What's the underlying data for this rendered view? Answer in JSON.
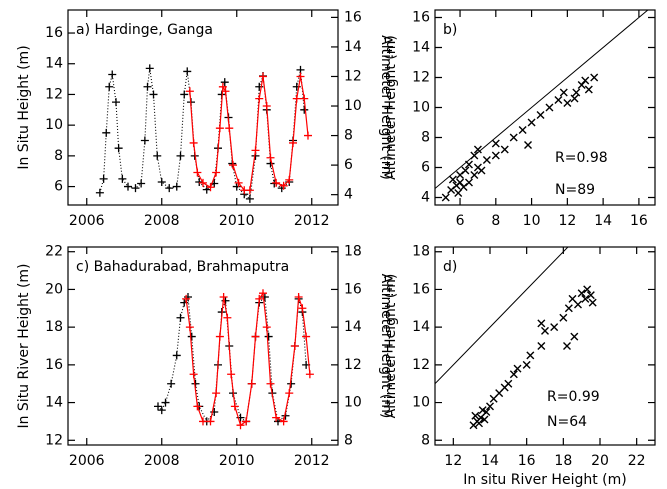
{
  "chart_data": [
    {
      "type": "line",
      "title": "a) Hardinge, Ganga",
      "ylabel": "In Situ Height (m)",
      "y2label": "Altimeter Height (m)",
      "xlim": [
        2005.5,
        2012.7
      ],
      "xticks": [
        2006,
        2008,
        2010,
        2012
      ],
      "ylim": [
        4.8,
        17.5
      ],
      "yticks": [
        6,
        8,
        10,
        12,
        14,
        16
      ],
      "y2lim": [
        3.3,
        16.5
      ],
      "y2ticks": [
        4,
        6,
        8,
        10,
        12,
        14,
        16
      ],
      "series": [
        {
          "color": "#000000",
          "marker": "+",
          "line": "dotted",
          "x": [
            2006.35,
            2006.45,
            2006.52,
            2006.6,
            2006.68,
            2006.78,
            2006.85,
            2006.95,
            2007.1,
            2007.3,
            2007.45,
            2007.55,
            2007.62,
            2007.68,
            2007.78,
            2007.88,
            2008.0,
            2008.2,
            2008.4,
            2008.5,
            2008.6,
            2008.68,
            2008.78,
            2008.88,
            2009.0,
            2009.2,
            2009.4,
            2009.5,
            2009.6,
            2009.68,
            2009.78,
            2009.88,
            2010.0,
            2010.2,
            2010.35,
            2010.5,
            2010.6,
            2010.7,
            2010.8,
            2010.9,
            2011.0,
            2011.2,
            2011.4,
            2011.5,
            2011.6,
            2011.7,
            2011.8
          ],
          "values": [
            5.6,
            6.5,
            9.5,
            12.5,
            13.3,
            11.5,
            8.5,
            6.5,
            6.0,
            5.9,
            6.2,
            9.0,
            12.5,
            13.7,
            12.0,
            8.0,
            6.3,
            5.9,
            6.0,
            8.0,
            12.0,
            13.5,
            11.5,
            8.0,
            6.3,
            5.8,
            6.2,
            8.5,
            12.0,
            12.8,
            10.5,
            7.5,
            6.0,
            5.5,
            5.2,
            8.0,
            12.5,
            13.2,
            11.0,
            7.5,
            6.2,
            5.9,
            6.3,
            9.0,
            12.5,
            13.6,
            11.0
          ]
        },
        {
          "color": "#ff0000",
          "marker": "+",
          "line": "solid",
          "axis": "y2",
          "x": [
            2008.75,
            2008.85,
            2008.95,
            2009.1,
            2009.3,
            2009.45,
            2009.55,
            2009.63,
            2009.7,
            2009.8,
            2009.9,
            2010.05,
            2010.2,
            2010.35,
            2010.5,
            2010.6,
            2010.7,
            2010.8,
            2010.9,
            2011.05,
            2011.25,
            2011.4,
            2011.5,
            2011.6,
            2011.7,
            2011.8,
            2011.9
          ],
          "values": [
            11.0,
            7.5,
            5.5,
            4.8,
            4.5,
            5.5,
            8.5,
            11.3,
            11.0,
            8.5,
            6.0,
            4.8,
            4.3,
            4.3,
            7.0,
            10.5,
            12.0,
            10.0,
            6.5,
            4.8,
            4.6,
            5.0,
            7.5,
            10.5,
            12.0,
            10.5,
            8.0
          ]
        }
      ]
    },
    {
      "type": "scatter",
      "title": "b)",
      "ylabel": "Altimeter Height (m)",
      "annotations": [
        "R=0.98",
        "N=89"
      ],
      "xlim": [
        4.6,
        16.9
      ],
      "xticks": [
        6,
        8,
        10,
        12,
        14,
        16
      ],
      "ylim": [
        3.5,
        16.5
      ],
      "yticks": [
        4,
        6,
        8,
        10,
        12,
        14,
        16
      ],
      "color": "#000000",
      "marker": "x",
      "identity_line": true,
      "x": [
        5.5,
        5.8,
        6.0,
        5.6,
        6.2,
        6.0,
        6.5,
        6.3,
        5.9,
        6.8,
        7.0,
        6.5,
        7.2,
        7.5,
        7.0,
        8.0,
        8.5,
        9.0,
        9.5,
        10.0,
        9.8,
        10.5,
        11.0,
        11.5,
        12.0,
        12.5,
        12.8,
        13.0,
        13.5,
        13.2,
        5.2,
        6.8,
        8.0,
        11.8,
        12.4
      ],
      "values": [
        4.5,
        4.8,
        5.0,
        5.2,
        4.7,
        5.5,
        5.0,
        5.8,
        4.3,
        5.5,
        6.0,
        6.2,
        5.8,
        6.5,
        7.2,
        6.8,
        7.2,
        8.0,
        8.5,
        9.0,
        7.5,
        9.5,
        10.0,
        10.5,
        10.3,
        11.0,
        11.5,
        11.8,
        12.0,
        11.2,
        4.0,
        6.8,
        7.6,
        11.0,
        10.6
      ]
    },
    {
      "type": "line",
      "title": "c) Bahadurabad, Brahmaputra",
      "ylabel": "In Situ River Height (m)",
      "y2label": "Altimeter Height (m)",
      "xlim": [
        2005.5,
        2012.7
      ],
      "xticks": [
        2006,
        2008,
        2010,
        2012
      ],
      "ylim": [
        11.75,
        22.25
      ],
      "yticks": [
        12,
        14,
        16,
        18,
        20,
        22
      ],
      "y2lim": [
        7.75,
        18.25
      ],
      "y2ticks": [
        8,
        10,
        12,
        14,
        16,
        18
      ],
      "series": [
        {
          "color": "#000000",
          "marker": "+",
          "line": "dotted",
          "x": [
            2007.9,
            2008.0,
            2008.1,
            2008.25,
            2008.4,
            2008.5,
            2008.6,
            2008.7,
            2008.8,
            2008.9,
            2009.0,
            2009.2,
            2009.4,
            2009.5,
            2009.6,
            2009.7,
            2009.8,
            2009.9,
            2010.1,
            2010.25,
            2010.4,
            2010.5,
            2010.6,
            2010.75,
            2010.85,
            2010.95,
            2011.1,
            2011.3,
            2011.45,
            2011.55,
            2011.65,
            2011.75,
            2011.85
          ],
          "values": [
            13.8,
            13.6,
            14.0,
            15.0,
            16.5,
            18.5,
            19.3,
            19.6,
            17.5,
            15.0,
            13.8,
            13.0,
            13.5,
            16.0,
            18.8,
            19.4,
            17.0,
            14.5,
            13.2,
            13.0,
            15.0,
            17.5,
            19.3,
            19.6,
            17.5,
            14.5,
            13.0,
            13.3,
            15.0,
            17.0,
            19.5,
            18.8,
            16.0
          ]
        },
        {
          "color": "#ff0000",
          "marker": "+",
          "line": "solid",
          "axis": "y2",
          "x": [
            2008.65,
            2008.75,
            2008.85,
            2008.95,
            2009.1,
            2009.3,
            2009.45,
            2009.55,
            2009.65,
            2009.75,
            2009.85,
            2009.95,
            2010.1,
            2010.25,
            2010.4,
            2010.5,
            2010.6,
            2010.7,
            2010.8,
            2010.9,
            2011.05,
            2011.25,
            2011.4,
            2011.55,
            2011.65,
            2011.75,
            2011.85,
            2011.95
          ],
          "values": [
            15.5,
            14.0,
            11.5,
            9.8,
            9.0,
            9.0,
            10.5,
            13.5,
            15.6,
            14.5,
            11.5,
            9.8,
            8.8,
            9.0,
            11.0,
            13.5,
            15.5,
            15.8,
            14.0,
            11.0,
            9.2,
            9.0,
            10.5,
            13.0,
            15.6,
            15.0,
            13.5,
            11.5
          ]
        }
      ]
    },
    {
      "type": "scatter",
      "title": "d)",
      "ylabel": "Altimeter Height (m)",
      "xlabel": "In situ River Height (m)",
      "annotations": [
        "R=0.99",
        "N=64"
      ],
      "xlim": [
        11,
        23
      ],
      "xticks": [
        12,
        14,
        16,
        18,
        20,
        22
      ],
      "ylim": [
        7.75,
        18.25
      ],
      "yticks": [
        8,
        10,
        12,
        14,
        16,
        18
      ],
      "color": "#000000",
      "marker": "x",
      "identity_line": true,
      "x": [
        13.1,
        13.3,
        13.5,
        13.2,
        13.6,
        13.8,
        14.0,
        13.4,
        14.2,
        14.5,
        14.8,
        15.0,
        15.3,
        15.5,
        16.0,
        16.2,
        16.8,
        17.0,
        16.8,
        17.5,
        18.0,
        18.3,
        18.5,
        18.8,
        19.0,
        19.2,
        19.5,
        19.3,
        18.6,
        18.2,
        19.6,
        13.7
      ],
      "values": [
        8.8,
        9.0,
        9.2,
        9.3,
        9.6,
        9.5,
        9.8,
        8.9,
        10.2,
        10.5,
        10.8,
        11.0,
        11.5,
        11.8,
        12.0,
        12.5,
        13.0,
        13.8,
        14.2,
        14.0,
        14.5,
        15.0,
        15.5,
        15.2,
        15.8,
        15.5,
        15.7,
        16.0,
        13.5,
        13.0,
        15.3,
        9.1
      ]
    }
  ]
}
